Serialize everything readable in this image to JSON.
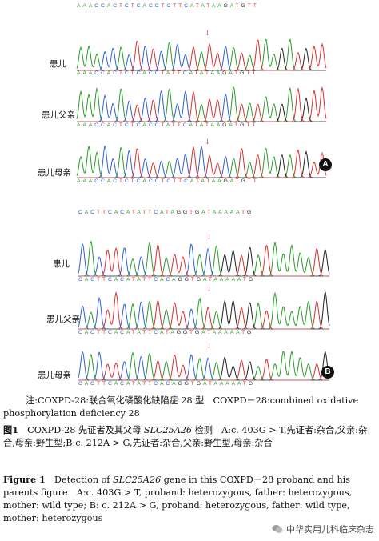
{
  "panels": {
    "A": {
      "badge": "A",
      "top_sequence": "AAACCACTCTCACCTCTTCATATAAGATGTT",
      "rows": [
        {
          "label": "患儿",
          "sequence": "AAACCACTCTCACCTATTCATATAAGATGTT"
        },
        {
          "label": "患儿父亲",
          "sequence": "AAACCACTCTCACCTATTCATATAAGATGTT"
        },
        {
          "label": "患儿母亲",
          "sequence": "AAACCACTCTCACCTCTTCATATAAGATGTT"
        }
      ]
    },
    "B": {
      "badge": "B",
      "top_sequence": "CACTTCACATATTCATAGGTGATAAAAATG",
      "rows": [
        {
          "label": "患儿",
          "sequence": "CACTTCACATATTCACAGGTGATAAAAATG"
        },
        {
          "label": "患儿父亲",
          "sequence": "CACTTCACATATTCATAGGTGATAAAAATG"
        },
        {
          "label": "患儿母亲",
          "sequence": "CACTTCACATATTCACAGGTGATAAAAATG"
        }
      ]
    }
  },
  "base_colors": {
    "A": "#2c9a2c",
    "C": "#2f5fd6",
    "G": "#222222",
    "T": "#d93030"
  },
  "arrow_color": "#e04040",
  "caption": {
    "note_prefix": "注:",
    "note_text": "COXPD-28:联合氧化磷酸化缺陷症 28 型　COXPD－28:combined oxidative phosphorylation deficiency 28",
    "cn_label": "图1",
    "cn_text_1": "　COXPD-28 先证者及其父母 ",
    "cn_gene": "SLC25A26",
    "cn_text_2": " 检测　A:c. 403G > T,先证者:杂合,父亲:杂合,母亲:野生型;B:c. 212A > G,先证者:杂合,父亲:野生型,母亲:杂合",
    "en_label": "Figure 1",
    "en_text_1": "　Detection of ",
    "en_gene": "SLC25A26",
    "en_text_2": " gene in this COXPD－28 proband and his parents figure　A:c. 403G > T, proband: heterozygous, father: heterozygous, mother: wild type; B: c. 212A > G, proband: heterozygous, father: wild type, mother: heterozygous"
  },
  "watermark": "中华实用儿科临床杂志"
}
